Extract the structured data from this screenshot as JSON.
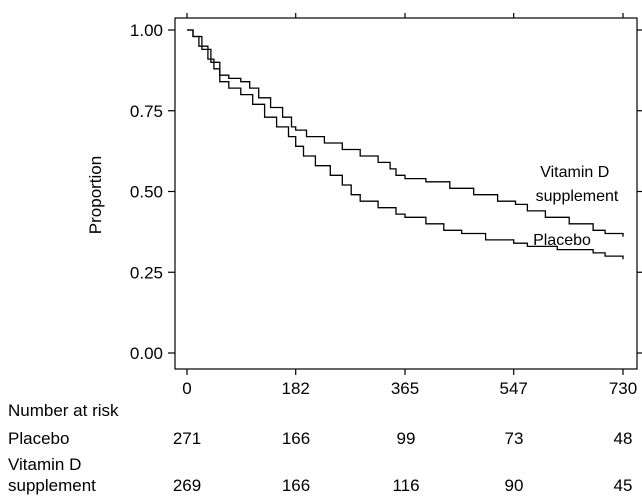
{
  "chart_data": {
    "type": "line",
    "ylabel": "Proportion",
    "xlabel": "",
    "x_ticks": [
      0,
      182,
      365,
      547,
      730
    ],
    "y_ticks": [
      "0.00",
      "0.25",
      "0.50",
      "0.75",
      "1.00"
    ],
    "xlim": [
      0,
      730
    ],
    "ylim": [
      0,
      1
    ],
    "step": true,
    "series": [
      {
        "name": "Vitamin D supplement",
        "label_lines": [
          "Vitamin D",
          "supplement"
        ],
        "color": "#000000",
        "points": [
          [
            0,
            1.0
          ],
          [
            10,
            0.98
          ],
          [
            20,
            0.95
          ],
          [
            35,
            0.91
          ],
          [
            45,
            0.88
          ],
          [
            55,
            0.86
          ],
          [
            70,
            0.85
          ],
          [
            90,
            0.84
          ],
          [
            105,
            0.82
          ],
          [
            120,
            0.79
          ],
          [
            140,
            0.76
          ],
          [
            160,
            0.73
          ],
          [
            175,
            0.7
          ],
          [
            182,
            0.69
          ],
          [
            200,
            0.67
          ],
          [
            230,
            0.65
          ],
          [
            260,
            0.63
          ],
          [
            290,
            0.61
          ],
          [
            320,
            0.59
          ],
          [
            340,
            0.57
          ],
          [
            350,
            0.55
          ],
          [
            365,
            0.54
          ],
          [
            400,
            0.53
          ],
          [
            440,
            0.51
          ],
          [
            480,
            0.49
          ],
          [
            520,
            0.47
          ],
          [
            550,
            0.46
          ],
          [
            570,
            0.44
          ],
          [
            600,
            0.42
          ],
          [
            640,
            0.4
          ],
          [
            680,
            0.38
          ],
          [
            700,
            0.37
          ],
          [
            730,
            0.36
          ]
        ]
      },
      {
        "name": "Placebo",
        "label_lines": [
          "Placebo"
        ],
        "color": "#000000",
        "points": [
          [
            0,
            1.0
          ],
          [
            10,
            0.98
          ],
          [
            25,
            0.94
          ],
          [
            40,
            0.9
          ],
          [
            55,
            0.84
          ],
          [
            70,
            0.82
          ],
          [
            90,
            0.8
          ],
          [
            110,
            0.77
          ],
          [
            130,
            0.73
          ],
          [
            150,
            0.7
          ],
          [
            170,
            0.67
          ],
          [
            182,
            0.64
          ],
          [
            195,
            0.61
          ],
          [
            215,
            0.58
          ],
          [
            240,
            0.55
          ],
          [
            260,
            0.52
          ],
          [
            275,
            0.49
          ],
          [
            290,
            0.47
          ],
          [
            320,
            0.45
          ],
          [
            350,
            0.43
          ],
          [
            365,
            0.42
          ],
          [
            400,
            0.4
          ],
          [
            430,
            0.38
          ],
          [
            460,
            0.37
          ],
          [
            500,
            0.35
          ],
          [
            547,
            0.34
          ],
          [
            570,
            0.33
          ],
          [
            620,
            0.32
          ],
          [
            680,
            0.31
          ],
          [
            700,
            0.3
          ],
          [
            730,
            0.29
          ]
        ]
      }
    ]
  },
  "risk_table": {
    "title": "Number at risk",
    "rows": [
      {
        "label_lines": [
          "Placebo"
        ],
        "counts": [
          "271",
          "166",
          "99",
          "73",
          "48"
        ]
      },
      {
        "label_lines": [
          "Vitamin D",
          "supplement"
        ],
        "counts": [
          "269",
          "166",
          "116",
          "90",
          "45"
        ]
      }
    ]
  }
}
